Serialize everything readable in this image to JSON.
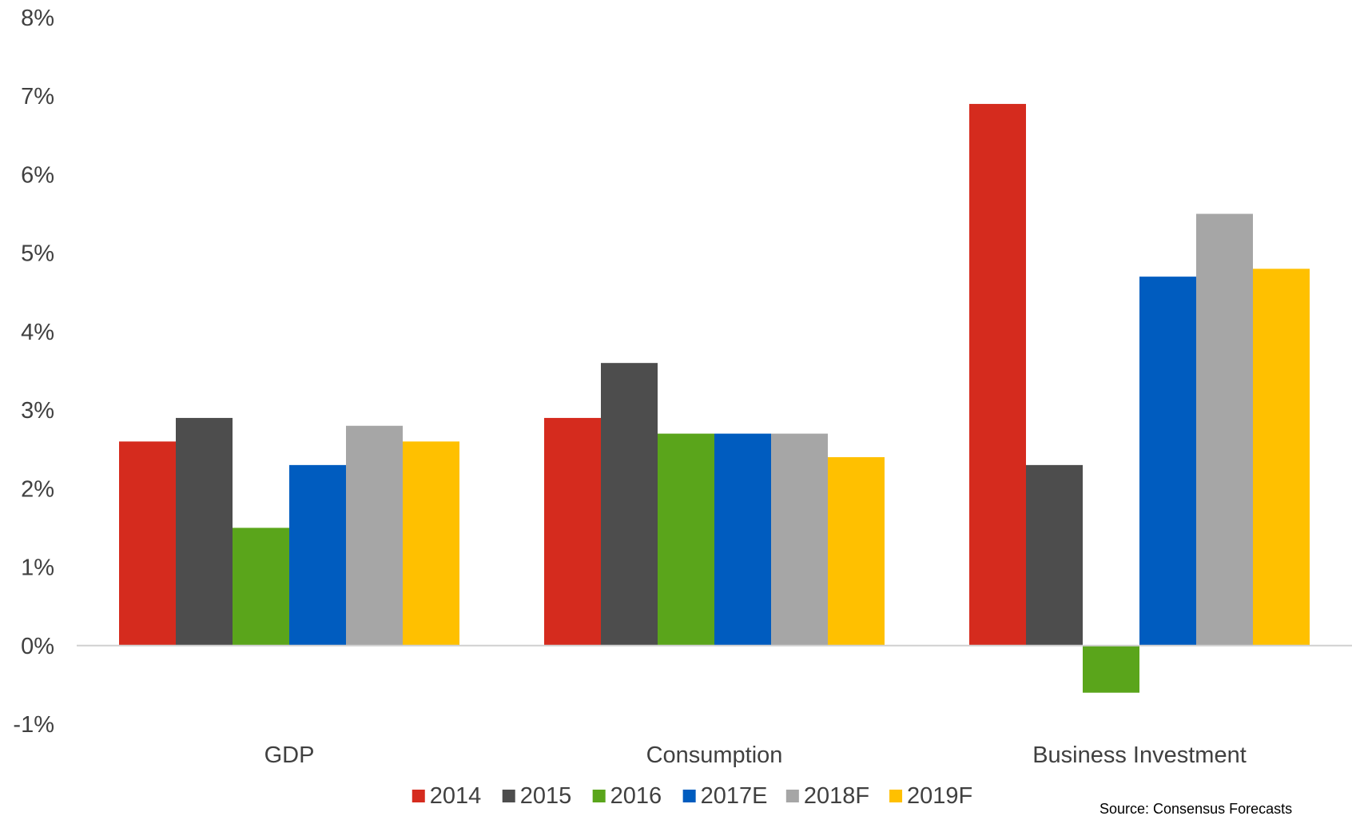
{
  "chart_data": {
    "type": "bar",
    "categories": [
      "GDP",
      "Consumption",
      "Business Investment"
    ],
    "series": [
      {
        "name": "2014",
        "color": "#d52b1e",
        "values": [
          2.6,
          2.9,
          6.9
        ]
      },
      {
        "name": "2015",
        "color": "#4d4d4d",
        "values": [
          2.9,
          3.6,
          2.3
        ]
      },
      {
        "name": "2016",
        "color": "#5aa51b",
        "values": [
          1.5,
          2.7,
          -0.6
        ]
      },
      {
        "name": "2017E",
        "color": "#005cbf",
        "values": [
          2.3,
          2.7,
          4.7
        ]
      },
      {
        "name": "2018F",
        "color": "#a6a6a6",
        "values": [
          2.8,
          2.7,
          5.5
        ]
      },
      {
        "name": "2019F",
        "color": "#ffc000",
        "values": [
          2.6,
          2.4,
          4.8
        ]
      }
    ],
    "ylim": [
      -1,
      8
    ],
    "yticks": [
      "-1%",
      "0%",
      "1%",
      "2%",
      "3%",
      "4%",
      "5%",
      "6%",
      "7%",
      "8%"
    ],
    "ytick_values": [
      -1,
      0,
      1,
      2,
      3,
      4,
      5,
      6,
      7,
      8
    ],
    "legend_position": "bottom",
    "grid": false,
    "source": "Source: Consensus Forecasts"
  }
}
